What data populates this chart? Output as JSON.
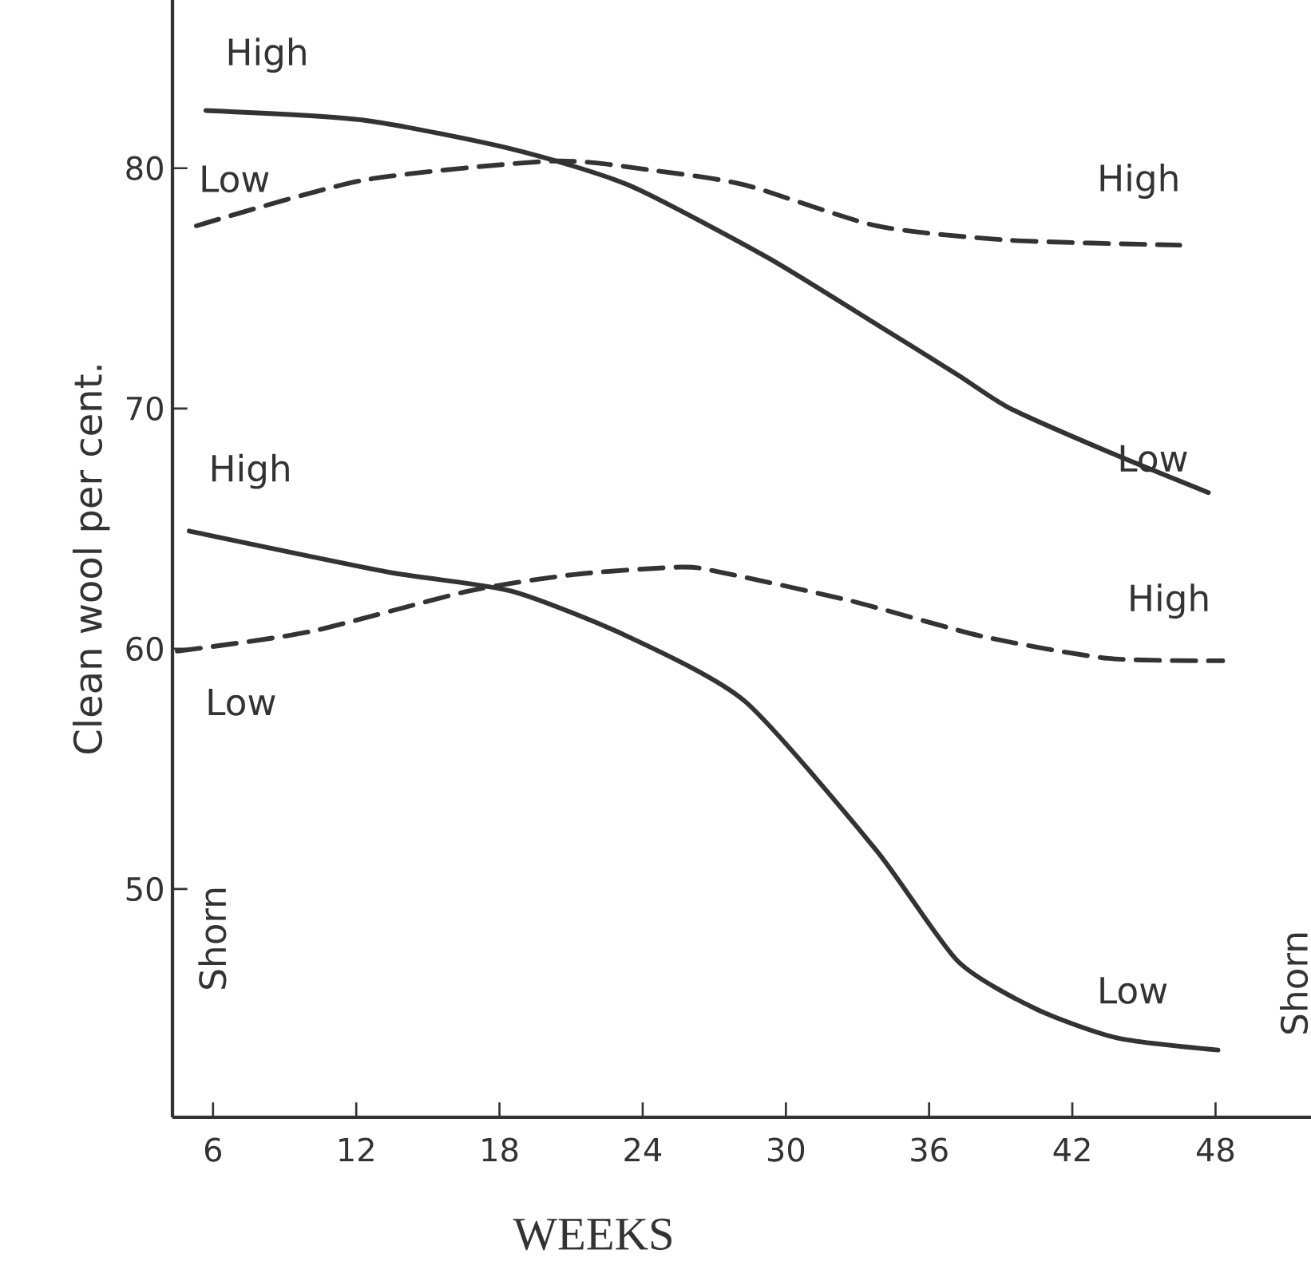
{
  "chart_data": {
    "type": "line",
    "xlabel": "WEEKS",
    "ylabel": "Clean wool per cent.",
    "xlim": [
      4.3,
      52
    ],
    "ylim": [
      40.5,
      87
    ],
    "xticks": [
      6,
      12,
      18,
      24,
      30,
      36,
      42,
      48
    ],
    "yticks": [
      50,
      60,
      70,
      80
    ],
    "grid": false,
    "marker": "none",
    "series": [
      {
        "color": "#333333",
        "line_style": "solid",
        "x": [
          5.7,
          12.3,
          18.5,
          23.4,
          29.2,
          33.8,
          37.2,
          39.4,
          43.5,
          47.7
        ],
        "values": [
          82.4,
          82.0,
          80.8,
          79.3,
          76.3,
          73.5,
          71.4,
          70.0,
          68.2,
          66.5
        ]
      },
      {
        "color": "#333333",
        "line_style": "dashed",
        "x": [
          5.3,
          12.3,
          20.3,
          24.5,
          28.3,
          33.8,
          39.4,
          46.5
        ],
        "values": [
          77.6,
          79.5,
          80.3,
          79.9,
          79.3,
          77.6,
          77.0,
          76.8
        ]
      },
      {
        "color": "#333333",
        "line_style": "solid",
        "x": [
          5.0,
          13.3,
          18.5,
          23.4,
          28.3,
          33.8,
          37.2,
          40.5,
          43.9,
          48.1
        ],
        "values": [
          64.9,
          63.2,
          62.4,
          60.5,
          57.8,
          51.6,
          47.0,
          45.0,
          43.8,
          43.3
        ]
      },
      {
        "color": "#333333",
        "line_style": "dashed",
        "x": [
          4.5,
          10.0,
          16.7,
          21.2,
          25.6,
          27.2,
          32.7,
          38.3,
          43.5,
          48.3
        ],
        "values": [
          59.9,
          60.7,
          62.4,
          63.1,
          63.4,
          63.2,
          62.0,
          60.5,
          59.6,
          59.5
        ]
      }
    ],
    "annotations": [
      "High",
      "Low",
      "Low",
      "High",
      "High",
      "Low",
      "Low",
      "High",
      "Shorn",
      "Shorn"
    ]
  }
}
